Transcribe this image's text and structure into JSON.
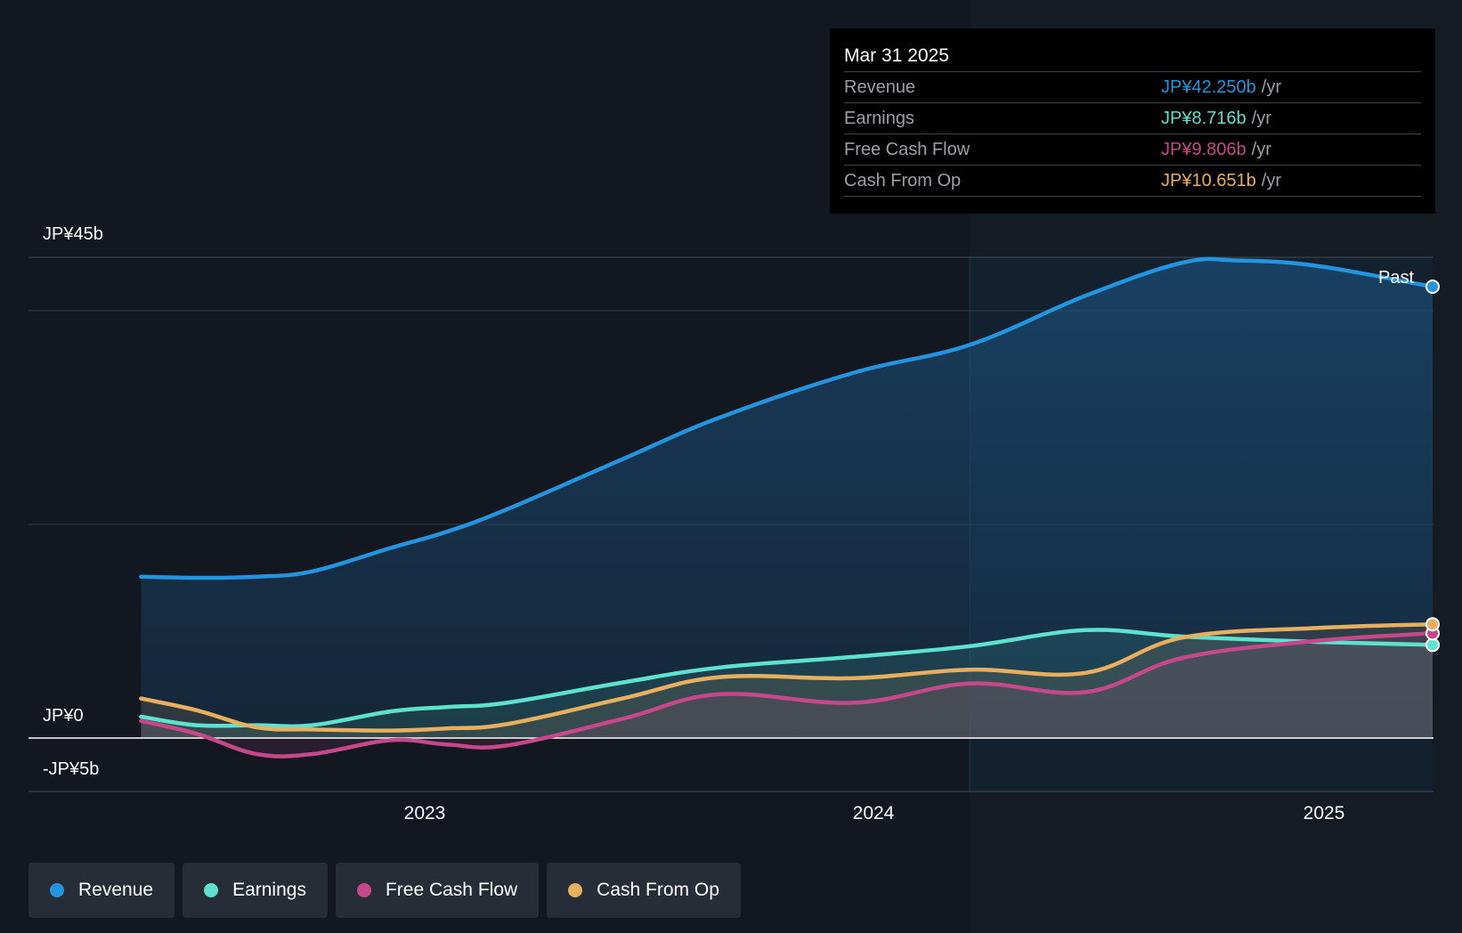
{
  "colors": {
    "revenue": "#2394df",
    "earnings": "#5de2cf",
    "fcf": "#c6488a",
    "cfo": "#e8af5e",
    "background": "#151b23",
    "grid": "#363d47"
  },
  "tooltip": {
    "date": "Mar 31 2025",
    "unit": "/yr",
    "rows": [
      {
        "name": "Revenue",
        "value": "JP¥42.250b"
      },
      {
        "name": "Earnings",
        "value": "JP¥8.716b"
      },
      {
        "name": "Free Cash Flow",
        "value": "JP¥9.806b"
      },
      {
        "name": "Cash From Op",
        "value": "JP¥10.651b"
      }
    ]
  },
  "past_label": "Past",
  "legend": [
    {
      "label": "Revenue",
      "color": "#2394df"
    },
    {
      "label": "Earnings",
      "color": "#5de2cf"
    },
    {
      "label": "Free Cash Flow",
      "color": "#c6488a"
    },
    {
      "label": "Cash From Op",
      "color": "#e8af5e"
    }
  ],
  "chart_data": {
    "type": "area",
    "title": "",
    "xlabel": "",
    "ylabel": "",
    "unit": "JP¥ billions",
    "xlim": [
      2022.34,
      2025.25
    ],
    "ylim": [
      -5,
      45
    ],
    "y_tick_labels": [
      {
        "value": 45,
        "label": "JP¥45b"
      },
      {
        "value": 0,
        "label": "JP¥0"
      },
      {
        "value": -5,
        "label": "-JP¥5b"
      }
    ],
    "x_tick_labels": [
      {
        "value": 2023.0,
        "label": "2023"
      },
      {
        "value": 2024.0,
        "label": "2024"
      },
      {
        "value": 2025.0,
        "label": "2025"
      }
    ],
    "gridlines_y": [
      40,
      20
    ],
    "past_from": 2024.25,
    "grid": true,
    "legend_position": "bottom-left",
    "series": [
      {
        "name": "Revenue",
        "color": "#2394df",
        "x": [
          2022.46,
          2022.58,
          2022.71,
          2022.83,
          2023.0,
          2023.12,
          2023.25,
          2023.5,
          2023.71,
          2024.0,
          2024.25,
          2024.5,
          2024.71,
          2024.83,
          2025.0,
          2025.25
        ],
        "y": [
          15.1,
          15.0,
          15.1,
          15.6,
          17.8,
          19.3,
          21.4,
          26.1,
          30.0,
          34.2,
          36.8,
          41.4,
          44.5,
          44.7,
          44.2,
          42.25
        ]
      },
      {
        "name": "Earnings",
        "color": "#5de2cf",
        "x": [
          2022.46,
          2022.58,
          2022.71,
          2022.83,
          2023.0,
          2023.12,
          2023.25,
          2023.5,
          2023.71,
          2024.0,
          2024.25,
          2024.5,
          2024.71,
          2025.0,
          2025.25
        ],
        "y": [
          2.0,
          1.2,
          1.2,
          1.2,
          2.5,
          2.9,
          3.3,
          5.2,
          6.6,
          7.6,
          8.6,
          10.1,
          9.5,
          9.0,
          8.716
        ]
      },
      {
        "name": "Free Cash Flow",
        "color": "#c6488a",
        "x": [
          2022.46,
          2022.58,
          2022.71,
          2022.83,
          2023.0,
          2023.12,
          2023.25,
          2023.5,
          2023.71,
          2024.0,
          2024.25,
          2024.5,
          2024.71,
          2025.0,
          2025.25
        ],
        "y": [
          1.6,
          0.4,
          -1.5,
          -1.5,
          -0.2,
          -0.6,
          -0.7,
          1.8,
          4.1,
          3.3,
          5.1,
          4.3,
          7.5,
          9.1,
          9.806
        ]
      },
      {
        "name": "Cash From Op",
        "color": "#e8af5e",
        "x": [
          2022.46,
          2022.58,
          2022.71,
          2022.83,
          2023.0,
          2023.12,
          2023.25,
          2023.5,
          2023.71,
          2024.0,
          2024.25,
          2024.5,
          2024.71,
          2025.0,
          2025.25
        ],
        "y": [
          3.7,
          2.6,
          1.0,
          0.8,
          0.7,
          0.9,
          1.3,
          3.7,
          5.7,
          5.6,
          6.4,
          6.1,
          9.4,
          10.3,
          10.651
        ]
      }
    ]
  }
}
